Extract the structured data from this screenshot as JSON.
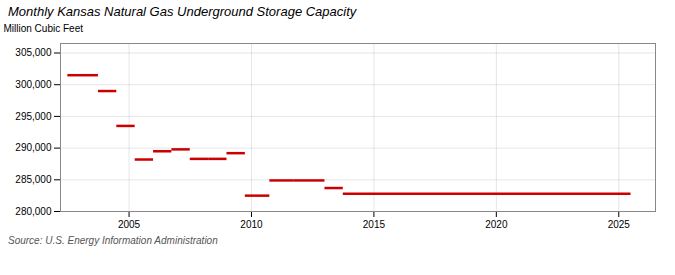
{
  "chart_data": {
    "type": "segments",
    "title": "Monthly Kansas Natural Gas Underground Storage Capacity",
    "ylabel": "Million Cubic Feet",
    "source": "Source: U.S. Energy Information Administration",
    "color": "#cc0000",
    "x_start": [
      2002.5,
      2003.75,
      2004.5,
      2005.25,
      2006.0,
      2006.75,
      2007.5,
      2008.25,
      2009.0,
      2009.75,
      2010.75,
      2011.75,
      2013.0,
      2013.75
    ],
    "x_end": [
      2003.75,
      2004.5,
      2005.25,
      2006.0,
      2006.75,
      2007.5,
      2008.25,
      2009.0,
      2009.75,
      2010.75,
      2011.75,
      2013.0,
      2013.75,
      2025.5
    ],
    "values": [
      301500,
      299000,
      293500,
      288200,
      289500,
      289800,
      288300,
      288300,
      289200,
      282500,
      284900,
      284900,
      283700,
      282800
    ],
    "xlim": [
      2002.2,
      2026.5
    ],
    "xticks": [
      2005,
      2010,
      2015,
      2020,
      2025
    ],
    "ylim": [
      280000,
      306500
    ],
    "yticks": [
      {
        "value": 280000,
        "label": "280,000"
      },
      {
        "value": 285000,
        "label": "285,000"
      },
      {
        "value": 290000,
        "label": "290,000"
      },
      {
        "value": 295000,
        "label": "295,000"
      },
      {
        "value": 300000,
        "label": "300,000"
      },
      {
        "value": 305000,
        "label": "305,000"
      }
    ],
    "grid": true
  }
}
